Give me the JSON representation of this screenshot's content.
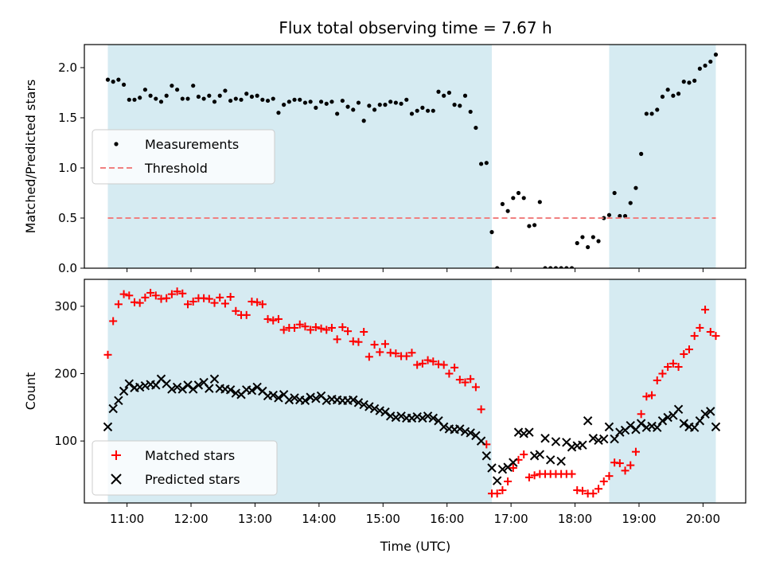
{
  "title": "Flux total observing time = 7.67 h",
  "colors": {
    "shade": "#add8e6",
    "measurements": "#000000",
    "threshold": "#f08080",
    "matched": "#ff0000",
    "predicted": "#000000"
  },
  "x_ticks": [
    "11:00",
    "12:00",
    "13:00",
    "14:00",
    "15:00",
    "16:00",
    "17:00",
    "18:00",
    "19:00",
    "20:00"
  ],
  "xlabel": "Time (UTC)",
  "chart_data": [
    {
      "type": "scatter",
      "ylabel": "Matched/Predicted stars",
      "xlim": [
        "10:20",
        "20:40"
      ],
      "ylim": [
        0,
        2.23
      ],
      "yticks": [
        "0.0",
        "0.5",
        "1.0",
        "1.5",
        "2.0"
      ],
      "shaded_intervals": [
        [
          "10:42",
          "16:42"
        ],
        [
          "18:32",
          "20:12"
        ]
      ],
      "threshold": 0.5,
      "legend": {
        "position": "center-left",
        "entries": [
          "Measurements",
          "Threshold"
        ]
      },
      "series": [
        {
          "name": "Measurements",
          "x": [
            "10:42",
            "10:47",
            "10:52",
            "10:57",
            "11:02",
            "11:07",
            "11:12",
            "11:17",
            "11:22",
            "11:27",
            "11:32",
            "11:37",
            "11:42",
            "11:47",
            "11:52",
            "11:57",
            "12:02",
            "12:07",
            "12:12",
            "12:17",
            "12:22",
            "12:27",
            "12:32",
            "12:37",
            "12:42",
            "12:47",
            "12:52",
            "12:57",
            "13:02",
            "13:07",
            "13:12",
            "13:17",
            "13:22",
            "13:27",
            "13:32",
            "13:37",
            "13:42",
            "13:47",
            "13:52",
            "13:57",
            "14:02",
            "14:07",
            "14:12",
            "14:17",
            "14:22",
            "14:27",
            "14:32",
            "14:37",
            "14:42",
            "14:47",
            "14:52",
            "14:57",
            "15:02",
            "15:07",
            "15:12",
            "15:17",
            "15:22",
            "15:27",
            "15:32",
            "15:37",
            "15:42",
            "15:47",
            "15:52",
            "15:57",
            "16:02",
            "16:07",
            "16:12",
            "16:17",
            "16:22",
            "16:27",
            "16:32",
            "16:37",
            "16:42",
            "16:47",
            "16:52",
            "16:57",
            "17:02",
            "17:07",
            "17:12",
            "17:17",
            "17:22",
            "17:27",
            "17:32",
            "17:37",
            "17:42",
            "17:47",
            "17:52",
            "17:57",
            "18:02",
            "18:07",
            "18:12",
            "18:17",
            "18:22",
            "18:27",
            "18:32",
            "18:37",
            "18:42",
            "18:47",
            "18:52",
            "18:57",
            "19:02",
            "19:07",
            "19:12",
            "19:17",
            "19:22",
            "19:27",
            "19:32",
            "19:37",
            "19:42",
            "19:47",
            "19:52",
            "19:57",
            "20:02",
            "20:07",
            "20:12"
          ],
          "y": [
            1.88,
            1.86,
            1.88,
            1.83,
            1.68,
            1.68,
            1.7,
            1.78,
            1.72,
            1.69,
            1.66,
            1.72,
            1.82,
            1.78,
            1.69,
            1.69,
            1.82,
            1.71,
            1.69,
            1.72,
            1.66,
            1.72,
            1.77,
            1.67,
            1.69,
            1.68,
            1.74,
            1.71,
            1.72,
            1.68,
            1.67,
            1.69,
            1.55,
            1.63,
            1.66,
            1.68,
            1.68,
            1.65,
            1.66,
            1.6,
            1.66,
            1.64,
            1.66,
            1.54,
            1.67,
            1.61,
            1.58,
            1.65,
            1.47,
            1.62,
            1.58,
            1.63,
            1.63,
            1.66,
            1.65,
            1.64,
            1.68,
            1.54,
            1.57,
            1.6,
            1.57,
            1.57,
            1.76,
            1.72,
            1.75,
            1.63,
            1.62,
            1.72,
            1.56,
            1.4,
            1.04,
            1.05,
            0.36,
            0.0,
            0.64,
            0.57,
            0.7,
            0.75,
            0.7,
            0.42,
            0.43,
            0.66,
            0.0,
            0.0,
            0.0,
            0.0,
            0.0,
            0.0,
            0.25,
            0.31,
            0.21,
            0.31,
            0.27,
            0.5,
            0.53,
            0.75,
            0.52,
            0.52,
            0.65,
            0.8,
            1.14,
            1.54,
            1.54,
            1.58,
            1.71,
            1.78,
            1.72,
            1.74,
            1.86,
            1.85,
            1.87,
            1.99,
            2.02,
            2.06,
            2.13
          ]
        },
        {
          "name": "Threshold",
          "type": "line",
          "x": [
            "10:42",
            "20:12"
          ],
          "y": [
            0.5,
            0.5
          ]
        }
      ]
    },
    {
      "type": "scatter",
      "ylabel": "Count",
      "xlim": [
        "10:20",
        "20:40"
      ],
      "ylim": [
        8,
        340
      ],
      "yticks": [
        "100",
        "200",
        "300"
      ],
      "shaded_intervals": [
        [
          "10:42",
          "16:42"
        ],
        [
          "18:32",
          "20:12"
        ]
      ],
      "legend": {
        "position": "lower-left",
        "entries": [
          "Matched stars",
          "Predicted stars"
        ]
      },
      "series": [
        {
          "name": "Matched stars",
          "x": [
            "10:42",
            "10:47",
            "10:52",
            "10:57",
            "11:02",
            "11:07",
            "11:12",
            "11:17",
            "11:22",
            "11:27",
            "11:32",
            "11:37",
            "11:42",
            "11:47",
            "11:52",
            "11:57",
            "12:02",
            "12:07",
            "12:12",
            "12:17",
            "12:22",
            "12:27",
            "12:32",
            "12:37",
            "12:42",
            "12:47",
            "12:52",
            "12:57",
            "13:02",
            "13:07",
            "13:12",
            "13:17",
            "13:22",
            "13:27",
            "13:32",
            "13:37",
            "13:42",
            "13:47",
            "13:52",
            "13:57",
            "14:02",
            "14:07",
            "14:12",
            "14:17",
            "14:22",
            "14:27",
            "14:32",
            "14:37",
            "14:42",
            "14:47",
            "14:52",
            "14:57",
            "15:02",
            "15:07",
            "15:12",
            "15:17",
            "15:22",
            "15:27",
            "15:32",
            "15:37",
            "15:42",
            "15:47",
            "15:52",
            "15:57",
            "16:02",
            "16:07",
            "16:12",
            "16:17",
            "16:22",
            "16:27",
            "16:32",
            "16:37",
            "16:42",
            "16:47",
            "16:52",
            "16:57",
            "17:02",
            "17:07",
            "17:12",
            "17:17",
            "17:22",
            "17:27",
            "17:32",
            "17:37",
            "17:42",
            "17:47",
            "17:52",
            "17:57",
            "18:02",
            "18:07",
            "18:12",
            "18:17",
            "18:22",
            "18:27",
            "18:32",
            "18:37",
            "18:42",
            "18:47",
            "18:52",
            "18:57",
            "19:02",
            "19:07",
            "19:12",
            "19:17",
            "19:22",
            "19:27",
            "19:32",
            "19:37",
            "19:42",
            "19:47",
            "19:52",
            "19:57",
            "20:02",
            "20:07",
            "20:12"
          ],
          "y": [
            228,
            278,
            303,
            318,
            316,
            306,
            305,
            313,
            320,
            316,
            311,
            312,
            318,
            322,
            319,
            303,
            307,
            312,
            312,
            311,
            305,
            313,
            304,
            314,
            293,
            287,
            287,
            307,
            306,
            303,
            281,
            279,
            281,
            265,
            268,
            268,
            273,
            270,
            265,
            269,
            267,
            265,
            268,
            251,
            269,
            263,
            248,
            247,
            262,
            225,
            243,
            232,
            244,
            231,
            230,
            226,
            226,
            231,
            213,
            215,
            220,
            218,
            214,
            213,
            200,
            209,
            191,
            187,
            192,
            180,
            147,
            95,
            22,
            22,
            27,
            40,
            60,
            72,
            80,
            46,
            49,
            51,
            51,
            51,
            51,
            51,
            51,
            51,
            27,
            26,
            22,
            22,
            29,
            40,
            48,
            68,
            67,
            56,
            64,
            84,
            140,
            166,
            168,
            190,
            200,
            210,
            215,
            210,
            229,
            236,
            256,
            268,
            295,
            262,
            256
          ]
        },
        {
          "name": "Predicted stars",
          "x": [
            "10:42",
            "10:47",
            "10:52",
            "10:57",
            "11:02",
            "11:07",
            "11:12",
            "11:17",
            "11:22",
            "11:27",
            "11:32",
            "11:37",
            "11:42",
            "11:47",
            "11:52",
            "11:57",
            "12:02",
            "12:07",
            "12:12",
            "12:17",
            "12:22",
            "12:27",
            "12:32",
            "12:37",
            "12:42",
            "12:47",
            "12:52",
            "12:57",
            "13:02",
            "13:07",
            "13:12",
            "13:17",
            "13:22",
            "13:27",
            "13:32",
            "13:37",
            "13:42",
            "13:47",
            "13:52",
            "13:57",
            "14:02",
            "14:07",
            "14:12",
            "14:17",
            "14:22",
            "14:27",
            "14:32",
            "14:37",
            "14:42",
            "14:47",
            "14:52",
            "14:57",
            "15:02",
            "15:07",
            "15:12",
            "15:17",
            "15:22",
            "15:27",
            "15:32",
            "15:37",
            "15:42",
            "15:47",
            "15:52",
            "15:57",
            "16:02",
            "16:07",
            "16:12",
            "16:17",
            "16:22",
            "16:27",
            "16:32",
            "16:37",
            "16:42",
            "16:47",
            "16:52",
            "16:57",
            "17:02",
            "17:07",
            "17:12",
            "17:17",
            "17:22",
            "17:27",
            "17:32",
            "17:37",
            "17:42",
            "17:47",
            "17:52",
            "17:57",
            "18:02",
            "18:07",
            "18:12",
            "18:17",
            "18:22",
            "18:27",
            "18:32",
            "18:37",
            "18:42",
            "18:47",
            "18:52",
            "18:57",
            "19:02",
            "19:07",
            "19:12",
            "19:17",
            "19:22",
            "19:27",
            "19:32",
            "19:37",
            "19:42",
            "19:47",
            "19:52",
            "19:57",
            "20:02",
            "20:07",
            "20:12"
          ],
          "y": [
            121,
            148,
            160,
            174,
            185,
            179,
            180,
            182,
            184,
            183,
            192,
            185,
            177,
            180,
            177,
            183,
            177,
            183,
            187,
            178,
            192,
            178,
            177,
            176,
            171,
            169,
            176,
            175,
            180,
            174,
            167,
            168,
            164,
            169,
            161,
            164,
            161,
            160,
            165,
            163,
            167,
            160,
            162,
            161,
            160,
            160,
            161,
            157,
            154,
            151,
            148,
            145,
            143,
            137,
            135,
            137,
            134,
            134,
            136,
            134,
            137,
            134,
            130,
            121,
            118,
            117,
            118,
            114,
            112,
            108,
            100,
            78,
            60,
            41,
            58,
            61,
            68,
            113,
            111,
            113,
            78,
            80,
            104,
            72,
            99,
            70,
            98,
            91,
            93,
            94,
            130,
            104,
            101,
            103,
            121,
            103,
            113,
            116,
            123,
            117,
            126,
            120,
            122,
            120,
            130,
            135,
            138,
            147,
            126,
            121,
            120,
            130,
            140,
            144,
            121
          ]
        }
      ]
    }
  ]
}
